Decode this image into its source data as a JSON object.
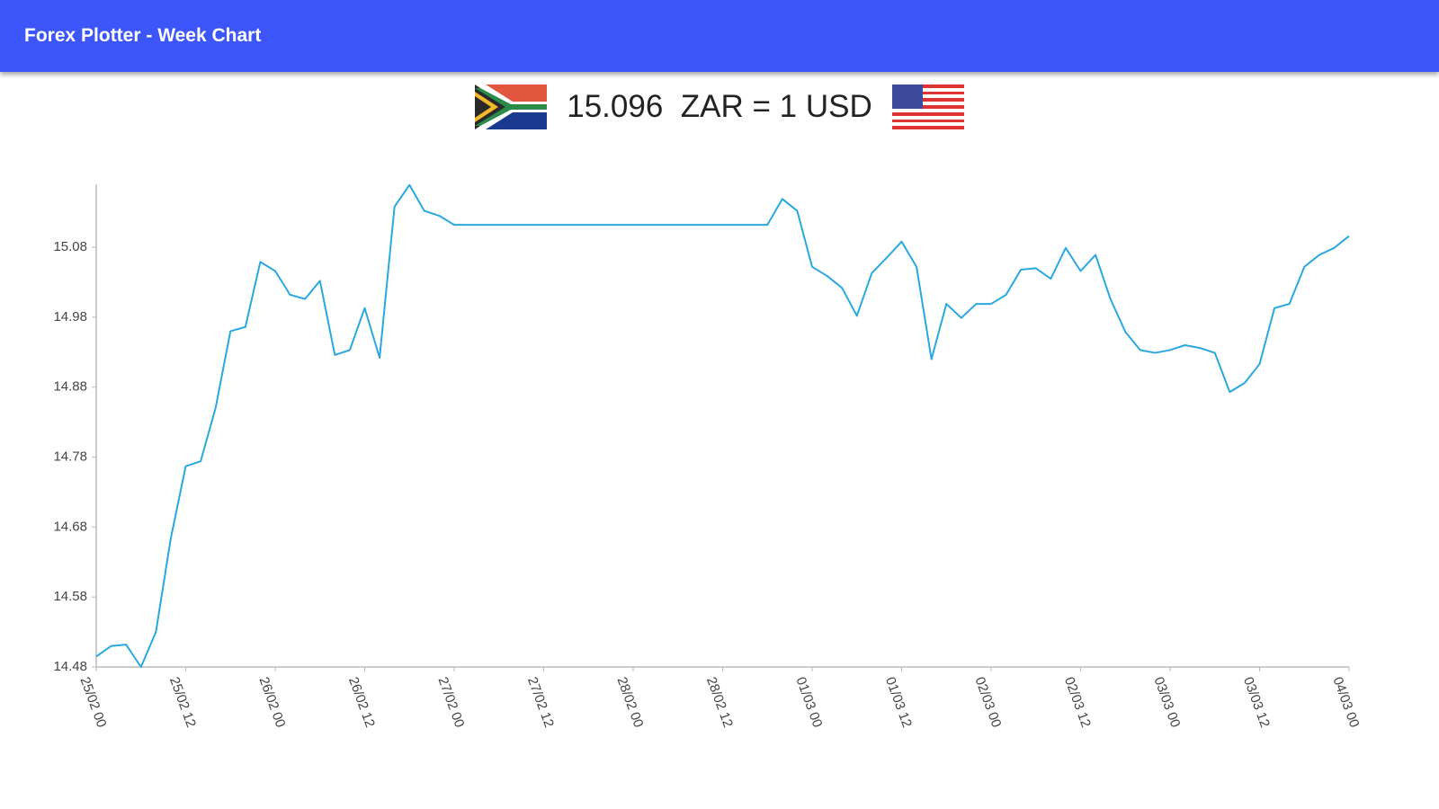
{
  "app_bar": {
    "title": "Forex Plotter - Week Chart"
  },
  "rate": {
    "text": "15.096  ZAR = 1 USD"
  },
  "chart_data": {
    "type": "line",
    "color": "#29a8e0",
    "categories": [
      "25/02 00",
      null,
      null,
      null,
      null,
      null,
      "25/02 12",
      null,
      null,
      null,
      null,
      null,
      "26/02 00",
      null,
      null,
      null,
      null,
      null,
      "26/02 12",
      null,
      null,
      null,
      null,
      null,
      "27/02 00",
      null,
      null,
      null,
      null,
      null,
      "27/02 12",
      null,
      null,
      null,
      null,
      null,
      "28/02 00",
      null,
      null,
      null,
      null,
      null,
      "28/02 12",
      null,
      null,
      null,
      null,
      null,
      "01/03 00",
      null,
      null,
      null,
      null,
      null,
      "01/03 12",
      null,
      null,
      null,
      null,
      null,
      "02/03 00",
      null,
      null,
      null,
      null,
      null,
      "02/03 12",
      null,
      null,
      null,
      null,
      null,
      "03/03 00",
      null,
      null,
      null,
      null,
      null,
      "03/03 12",
      null,
      null,
      null,
      null,
      null,
      "04/03 00"
    ],
    "values": [
      14.495,
      14.51,
      14.512,
      14.48,
      14.53,
      14.664,
      14.767,
      14.774,
      14.85,
      14.96,
      14.966,
      15.059,
      15.046,
      15.012,
      15.006,
      15.032,
      14.926,
      14.933,
      14.993,
      14.922,
      15.138,
      15.169,
      15.132,
      15.125,
      15.112,
      15.112,
      15.112,
      15.112,
      15.112,
      15.112,
      15.112,
      15.112,
      15.112,
      15.112,
      15.112,
      15.112,
      15.112,
      15.112,
      15.112,
      15.112,
      15.112,
      15.112,
      15.112,
      15.112,
      15.112,
      15.112,
      15.149,
      15.132,
      15.052,
      15.039,
      15.022,
      14.982,
      15.043,
      15.065,
      15.088,
      15.052,
      14.92,
      14.999,
      14.979,
      14.999,
      14.999,
      15.012,
      15.048,
      15.05,
      15.035,
      15.079,
      15.046,
      15.069,
      15.006,
      14.959,
      14.933,
      14.929,
      14.933,
      14.94,
      14.936,
      14.929,
      14.873,
      14.886,
      14.913,
      14.993,
      14.999,
      15.052,
      15.069,
      15.079,
      15.096
    ],
    "ylim": [
      14.48,
      15.17
    ],
    "yticks": [
      14.48,
      14.58,
      14.68,
      14.78,
      14.88,
      14.98,
      15.08
    ]
  }
}
